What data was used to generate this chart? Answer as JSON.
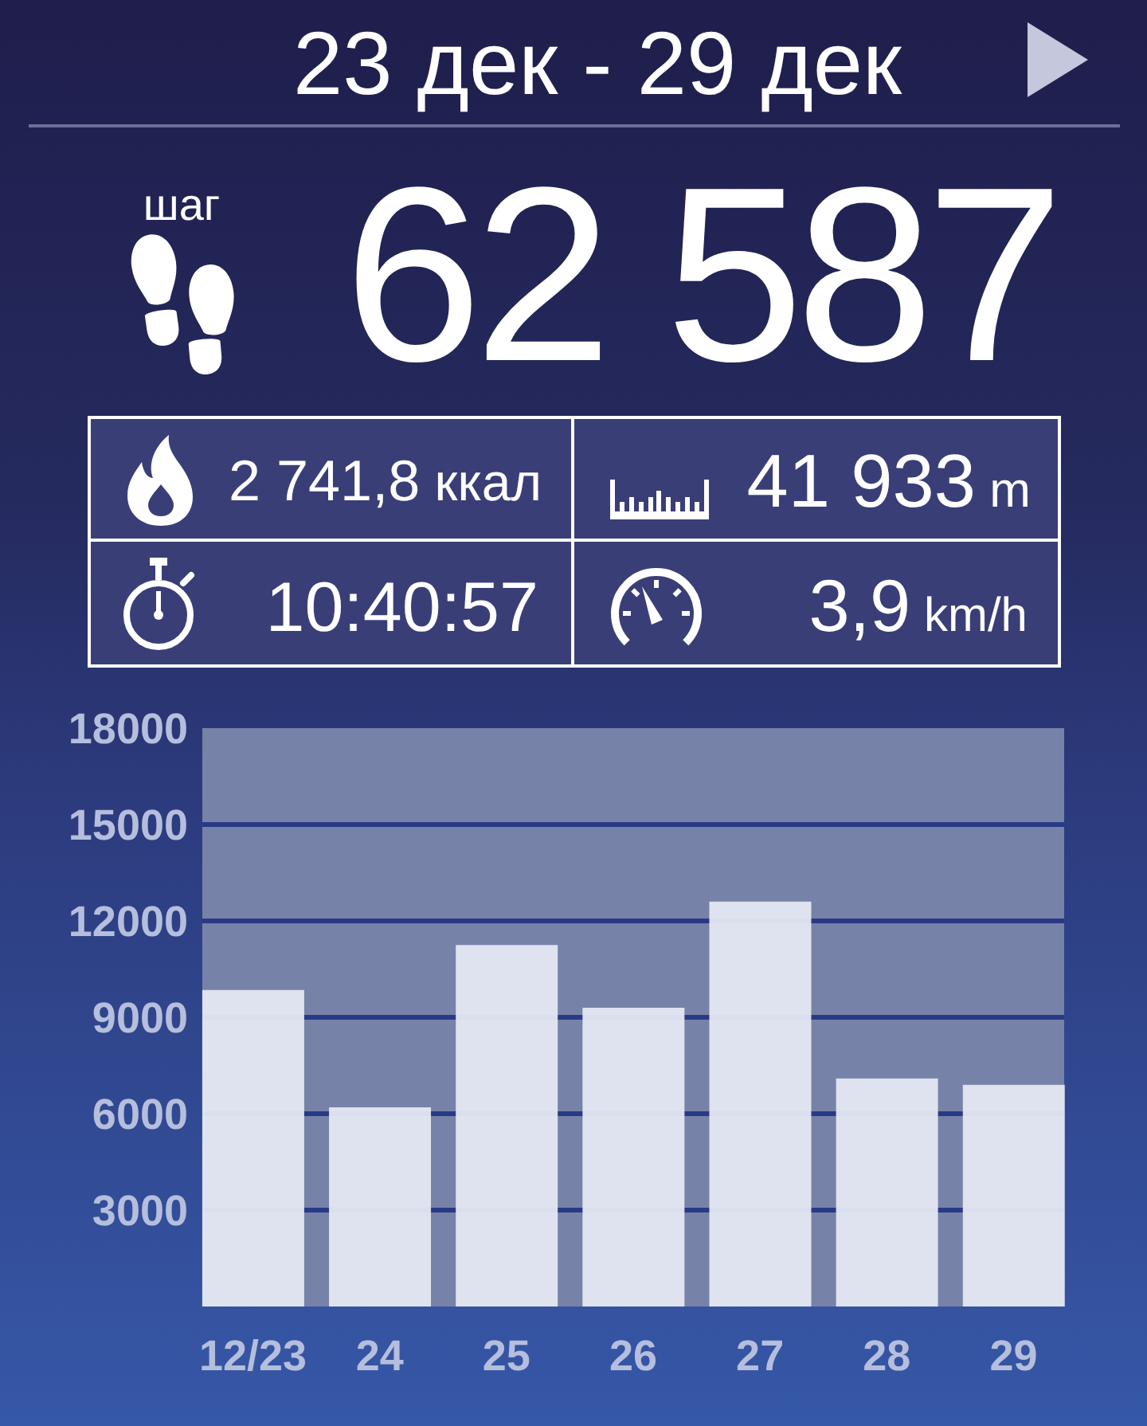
{
  "chart_data": {
    "type": "bar",
    "title": "23 дек - 29 дек",
    "annotations": [
      "шаг",
      "62 587",
      "2 741,8 ккал",
      "41 933 m",
      "10:40:57",
      "3,9 km/h"
    ],
    "categories": [
      "12/23",
      "24",
      "25",
      "26",
      "27",
      "28",
      "29"
    ],
    "values": [
      9850,
      6200,
      11250,
      9300,
      12600,
      7100,
      6900
    ],
    "color": "#e4e8f2",
    "ylim": [
      0,
      18000
    ],
    "yticks": [
      3000,
      6000,
      9000,
      12000,
      15000,
      18000
    ],
    "grid": "y"
  }
}
